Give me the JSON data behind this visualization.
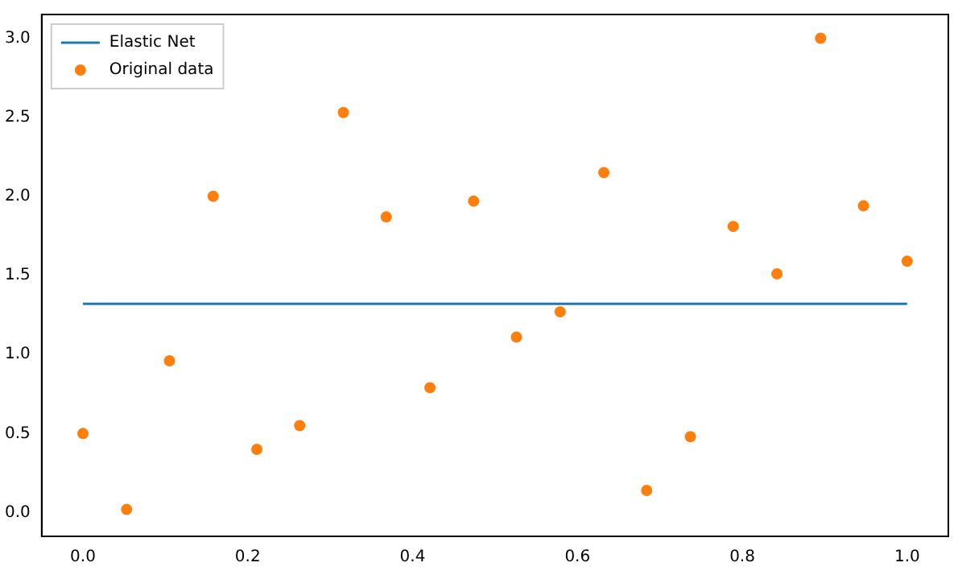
{
  "chart_data": {
    "type": "scatter",
    "xlim": [
      -0.05,
      1.05
    ],
    "ylim": [
      -0.15,
      3.15
    ],
    "xticks": [
      {
        "value": 0,
        "label": "0.0"
      },
      {
        "value": 0.2,
        "label": "0.2"
      },
      {
        "value": 0.4,
        "label": "0.4"
      },
      {
        "value": 0.6,
        "label": "0.6"
      },
      {
        "value": 0.8,
        "label": "0.8"
      },
      {
        "value": 1,
        "label": "1.0"
      }
    ],
    "yticks": [
      {
        "value": 0,
        "label": "0.0"
      },
      {
        "value": 0.5,
        "label": "0.5"
      },
      {
        "value": 1,
        "label": "1.0"
      },
      {
        "value": 1.5,
        "label": "1.5"
      },
      {
        "value": 2,
        "label": "2.0"
      },
      {
        "value": 2.5,
        "label": "2.5"
      },
      {
        "value": 3,
        "label": "3.0"
      }
    ],
    "grid": false,
    "legend": "top left",
    "marker": "circle",
    "series": [
      {
        "name": "Elastic Net",
        "type": "line",
        "color": "#1f77b4",
        "marker": "none",
        "x": [
          0,
          1
        ],
        "values": [
          1.32,
          1.32
        ]
      },
      {
        "name": "Original data",
        "type": "scatter",
        "color": "#ff7f0e",
        "x": [
          0,
          0.053,
          0.105,
          0.158,
          0.211,
          0.263,
          0.316,
          0.368,
          0.421,
          0.474,
          0.526,
          0.579,
          0.632,
          0.684,
          0.737,
          0.789,
          0.842,
          0.895,
          0.947,
          1
        ],
        "values": [
          0.5,
          0.02,
          0.96,
          2.0,
          0.4,
          0.55,
          2.53,
          1.87,
          0.79,
          1.97,
          1.11,
          1.27,
          2.15,
          0.14,
          0.48,
          1.81,
          1.51,
          3.0,
          1.94,
          1.59
        ]
      }
    ]
  }
}
